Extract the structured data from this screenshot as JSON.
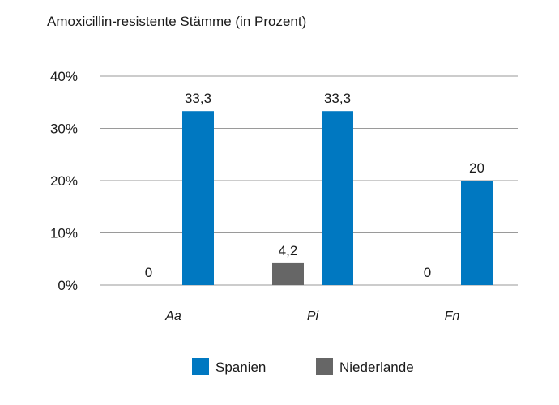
{
  "chart_data": {
    "type": "bar",
    "title": "Amoxicillin-resistente Stämme (in Prozent)",
    "categories": [
      "Aa",
      "Pi",
      "Fn"
    ],
    "series": [
      {
        "name": "Niederlande",
        "values": [
          0,
          4.2,
          0
        ],
        "labels": [
          "0",
          "4,2",
          "0"
        ],
        "color": "#666666"
      },
      {
        "name": "Spanien",
        "values": [
          33.3,
          33.3,
          20
        ],
        "labels": [
          "33,3",
          "33,3",
          "20"
        ],
        "color": "#0078c1"
      }
    ],
    "yticks": [
      0,
      10,
      20,
      30,
      40
    ],
    "ytick_labels": [
      "0%",
      "10%",
      "20%",
      "30%",
      "40%"
    ],
    "ylim": [
      0,
      40
    ],
    "grid": true,
    "legend_position": "bottom",
    "legend_order": [
      "Spanien",
      "Niederlande"
    ]
  }
}
